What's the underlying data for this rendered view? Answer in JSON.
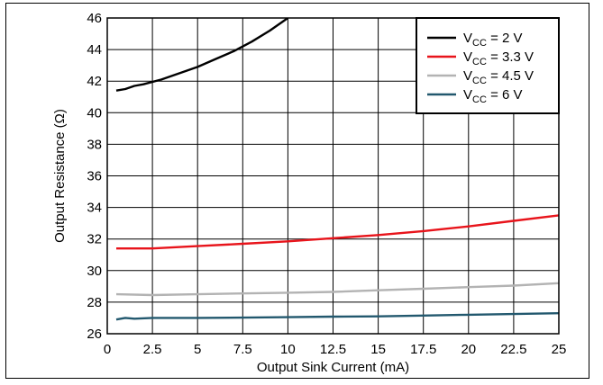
{
  "chart_data": {
    "type": "line",
    "title": "",
    "xlabel": "Output Sink Current (mA)",
    "ylabel": "Output Resistance (Ω)",
    "xlim": [
      0,
      25
    ],
    "ylim": [
      26,
      46
    ],
    "xticks": [
      0,
      2.5,
      5,
      7.5,
      10,
      12.5,
      15,
      17.5,
      20,
      22.5,
      25
    ],
    "xtick_labels": [
      "0",
      "2.5",
      "5",
      "7.5",
      "10",
      "12.5",
      "15",
      "17.5",
      "20",
      "22.5",
      "25"
    ],
    "yticks": [
      26,
      28,
      30,
      32,
      34,
      36,
      38,
      40,
      42,
      44,
      46
    ],
    "ytick_labels": [
      "26",
      "28",
      "30",
      "32",
      "34",
      "36",
      "38",
      "40",
      "42",
      "44",
      "46"
    ],
    "grid": true,
    "legend_position": "top-right",
    "series": [
      {
        "name": "V_CC = 2 V",
        "legend_main": "V",
        "legend_sub": "CC",
        "legend_rest": " = 2 V",
        "color": "#000000",
        "x": [
          0.5,
          1,
          1.5,
          2,
          3,
          4,
          5,
          6,
          7,
          8,
          9,
          10
        ],
        "y": [
          41.4,
          41.5,
          41.7,
          41.8,
          42.1,
          42.5,
          42.9,
          43.4,
          43.9,
          44.5,
          45.2,
          46.0
        ]
      },
      {
        "name": "V_CC = 3.3 V",
        "legend_main": "V",
        "legend_sub": "CC",
        "legend_rest": " = 3.3 V",
        "color": "#e8141b",
        "x": [
          0.5,
          1,
          1.5,
          2.5,
          5,
          7.5,
          10,
          12.5,
          15,
          17.5,
          20,
          22.5,
          25
        ],
        "y": [
          31.4,
          31.4,
          31.4,
          31.4,
          31.55,
          31.7,
          31.85,
          32.05,
          32.25,
          32.5,
          32.8,
          33.15,
          33.5
        ]
      },
      {
        "name": "V_CC = 4.5 V",
        "legend_main": "V",
        "legend_sub": "CC",
        "legend_rest": " = 4.5 V",
        "color": "#b3b3b3",
        "x": [
          0.5,
          2.5,
          5,
          7.5,
          10,
          12.5,
          15,
          17.5,
          20,
          22.5,
          25
        ],
        "y": [
          28.5,
          28.45,
          28.5,
          28.55,
          28.6,
          28.65,
          28.75,
          28.85,
          28.95,
          29.05,
          29.2
        ]
      },
      {
        "name": "V_CC = 6 V",
        "legend_main": "V",
        "legend_sub": "CC",
        "legend_rest": " = 6 V",
        "color": "#22586e",
        "x": [
          0.5,
          1,
          1.5,
          2.5,
          5,
          7.5,
          10,
          12.5,
          15,
          17.5,
          20,
          22.5,
          25
        ],
        "y": [
          26.9,
          27.0,
          26.95,
          27.0,
          27.0,
          27.02,
          27.05,
          27.08,
          27.1,
          27.15,
          27.2,
          27.25,
          27.3
        ]
      }
    ]
  }
}
